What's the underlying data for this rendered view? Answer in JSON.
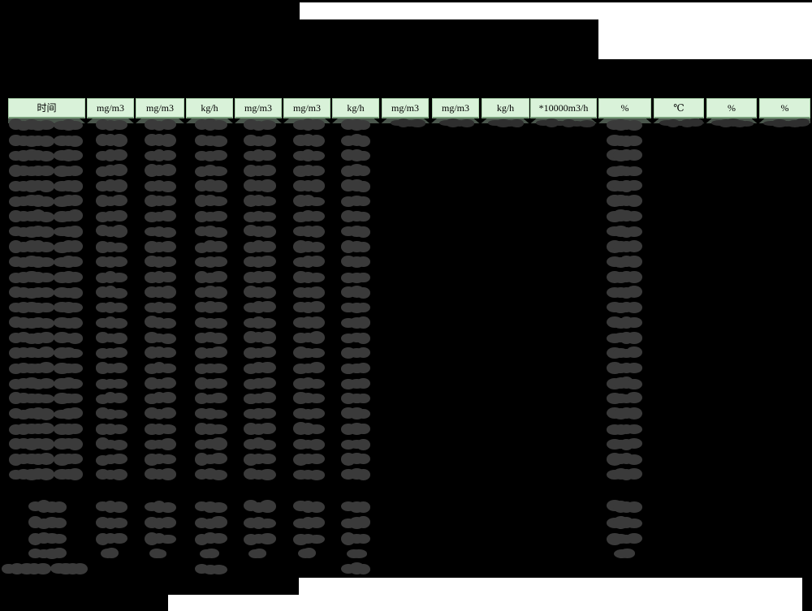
{
  "page": {
    "kind": "redacted-emission-report-table"
  },
  "colors": {
    "background": "#000000",
    "header_fill": "#d9f2d9",
    "header_text": "#000000",
    "header_band": "#4a564c",
    "blob": "#3a3a3a",
    "blob_fringe": "#2e2e2e",
    "unredacted_white": "#ffffff"
  },
  "table": {
    "header_units": [
      "时间",
      "mg/m3",
      "mg/m3",
      "kg/h",
      "mg/m3",
      "mg/m3",
      "kg/h",
      "mg/m3",
      "mg/m3",
      "kg/h",
      "*10000m3/h",
      "%",
      "℃",
      "%",
      "%"
    ],
    "redaction": {
      "main_row_count": 24,
      "first_row_columns": [
        1,
        2,
        3,
        4,
        5,
        6,
        7,
        8,
        9,
        10,
        11,
        12,
        13,
        14,
        15
      ],
      "standard_row_columns": [
        1,
        2,
        3,
        4,
        5,
        6,
        7,
        12
      ],
      "summary_rows": [
        {
          "label": "short",
          "size": "normal",
          "columns": [
            1,
            2,
            3,
            4,
            5,
            6,
            7,
            12
          ]
        },
        {
          "label": "short",
          "size": "normal",
          "columns": [
            1,
            2,
            3,
            4,
            5,
            6,
            7,
            12
          ]
        },
        {
          "label": "short",
          "size": "normal",
          "columns": [
            1,
            2,
            3,
            4,
            5,
            6,
            7,
            12
          ]
        },
        {
          "label": "short",
          "size": "small",
          "columns": [
            1,
            2,
            3,
            4,
            5,
            6,
            7,
            12
          ]
        },
        {
          "label": "long",
          "size": "normal",
          "columns": [
            1,
            4,
            7
          ]
        }
      ]
    }
  }
}
